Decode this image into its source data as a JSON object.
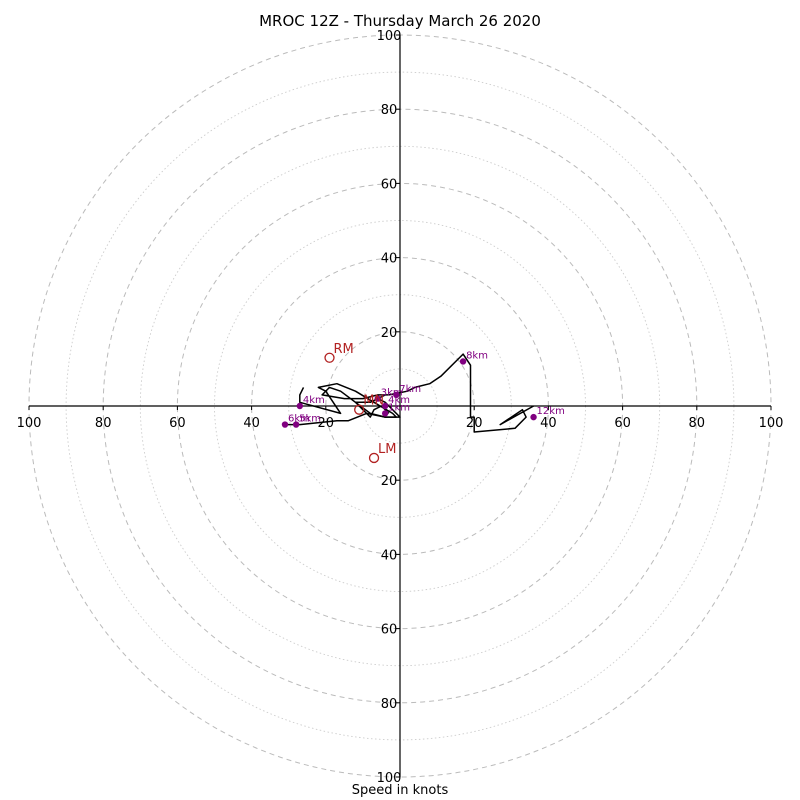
{
  "chart_data": {
    "type": "hodograph",
    "title": "MROC 12Z - Thursday March 26 2020",
    "xlabel": "Speed in knots",
    "range": [
      -100,
      100
    ],
    "rings": [
      10,
      20,
      30,
      40,
      50,
      60,
      70,
      80,
      90,
      100
    ],
    "tick_labels": {
      "x": [
        {
          "value": -100,
          "label": "100"
        },
        {
          "value": -80,
          "label": "80"
        },
        {
          "value": -60,
          "label": "60"
        },
        {
          "value": -40,
          "label": "40"
        },
        {
          "value": -20,
          "label": "20"
        },
        {
          "value": 20,
          "label": "20"
        },
        {
          "value": 40,
          "label": "40"
        },
        {
          "value": 60,
          "label": "60"
        },
        {
          "value": 80,
          "label": "80"
        },
        {
          "value": 100,
          "label": "100"
        }
      ],
      "y": [
        {
          "value": 100,
          "label": "100"
        },
        {
          "value": 80,
          "label": "80"
        },
        {
          "value": 60,
          "label": "60"
        },
        {
          "value": 40,
          "label": "40"
        },
        {
          "value": 20,
          "label": "20"
        },
        {
          "value": -20,
          "label": "20"
        },
        {
          "value": -40,
          "label": "40"
        },
        {
          "value": -60,
          "label": "60"
        },
        {
          "value": -80,
          "label": "80"
        },
        {
          "value": -100,
          "label": "100"
        }
      ]
    },
    "grid": true,
    "trace": [
      [
        -3,
        -2
      ],
      [
        -5,
        0
      ],
      [
        -7,
        -1
      ],
      [
        -8,
        -3
      ],
      [
        -10,
        -1
      ],
      [
        -12,
        1
      ],
      [
        -8,
        1
      ],
      [
        -4,
        3
      ],
      [
        -6,
        2
      ],
      [
        -4,
        1
      ],
      [
        -2,
        -1
      ],
      [
        0,
        -3
      ],
      [
        -4,
        -3
      ],
      [
        -8,
        -2
      ],
      [
        -16,
        4
      ],
      [
        -19,
        5
      ],
      [
        -21,
        3
      ],
      [
        -15,
        2
      ],
      [
        -10,
        2
      ],
      [
        -6,
        3
      ],
      [
        -3,
        3
      ],
      [
        2,
        4
      ],
      [
        4,
        5
      ],
      [
        8,
        6
      ],
      [
        11,
        8
      ],
      [
        17,
        14
      ],
      [
        19,
        11
      ],
      [
        19,
        10
      ],
      [
        19,
        3
      ],
      [
        19,
        0
      ],
      [
        19,
        -3
      ],
      [
        20,
        -3
      ],
      [
        20,
        -7
      ],
      [
        31,
        -6
      ],
      [
        34,
        -3
      ],
      [
        33,
        -1
      ],
      [
        27,
        -5
      ],
      [
        36,
        0
      ]
    ],
    "trace_tail": [
      [
        -26,
        5
      ],
      [
        -27,
        3
      ],
      [
        -27,
        1
      ],
      [
        -16,
        -2
      ],
      [
        -20,
        4
      ],
      [
        -22,
        5
      ],
      [
        -17,
        6
      ],
      [
        -12,
        4
      ],
      [
        -7,
        1
      ],
      [
        -2,
        -2
      ],
      [
        -1,
        -3
      ],
      [
        -4,
        -3
      ],
      [
        -9,
        -2
      ],
      [
        -14,
        -4
      ],
      [
        -17,
        -4
      ],
      [
        -27,
        -5
      ],
      [
        -31,
        -5
      ]
    ],
    "height_markers": [
      {
        "label": "3km",
        "u": -6,
        "v": 2
      },
      {
        "label": "4km",
        "u": -4,
        "v": 0
      },
      {
        "label": "1km",
        "u": -4,
        "v": -2
      },
      {
        "label": "4km",
        "u": -27,
        "v": 0
      },
      {
        "label": "5km",
        "u": -28,
        "v": -5
      },
      {
        "label": "6km",
        "u": -31,
        "v": -5
      },
      {
        "label": "7km",
        "u": -1,
        "v": 3
      },
      {
        "label": "8km",
        "u": 17,
        "v": 12
      },
      {
        "label": "12km",
        "u": 36,
        "v": -3
      }
    ],
    "storm_motions": [
      {
        "label": "RM",
        "u": -19,
        "v": 13
      },
      {
        "label": "LM",
        "u": -7,
        "v": -14
      },
      {
        "label": "MN",
        "u": -11,
        "v": -1
      }
    ],
    "colors": {
      "trace": "#000000",
      "marker": "#800080",
      "storm_motion": "#b22222",
      "ring_major": "#bbbbbb",
      "ring_minor": "#cccccc"
    }
  }
}
